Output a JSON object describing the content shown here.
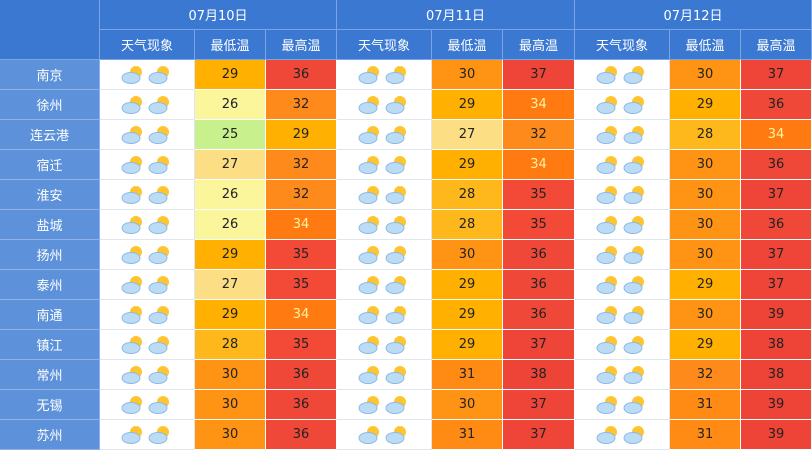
{
  "table": {
    "dates": [
      "07月10日",
      "07月11日",
      "07月12日"
    ],
    "subheaders": [
      "天气现象",
      "最低温",
      "最高温"
    ],
    "rows": [
      {
        "city": "南京",
        "days": [
          [
            29,
            36
          ],
          [
            30,
            37
          ],
          [
            30,
            37
          ]
        ]
      },
      {
        "city": "徐州",
        "days": [
          [
            26,
            32
          ],
          [
            29,
            34
          ],
          [
            29,
            36
          ]
        ]
      },
      {
        "city": "连云港",
        "days": [
          [
            25,
            29
          ],
          [
            27,
            32
          ],
          [
            28,
            34
          ]
        ]
      },
      {
        "city": "宿迁",
        "days": [
          [
            27,
            32
          ],
          [
            29,
            34
          ],
          [
            30,
            36
          ]
        ]
      },
      {
        "city": "淮安",
        "days": [
          [
            26,
            32
          ],
          [
            28,
            35
          ],
          [
            30,
            37
          ]
        ]
      },
      {
        "city": "盐城",
        "days": [
          [
            26,
            34
          ],
          [
            28,
            35
          ],
          [
            30,
            36
          ]
        ]
      },
      {
        "city": "扬州",
        "days": [
          [
            29,
            35
          ],
          [
            30,
            36
          ],
          [
            30,
            37
          ]
        ]
      },
      {
        "city": "泰州",
        "days": [
          [
            27,
            35
          ],
          [
            29,
            36
          ],
          [
            29,
            37
          ]
        ]
      },
      {
        "city": "南通",
        "days": [
          [
            29,
            34
          ],
          [
            29,
            36
          ],
          [
            30,
            39
          ]
        ]
      },
      {
        "city": "镇江",
        "days": [
          [
            28,
            35
          ],
          [
            29,
            37
          ],
          [
            29,
            38
          ]
        ]
      },
      {
        "city": "常州",
        "days": [
          [
            30,
            36
          ],
          [
            31,
            38
          ],
          [
            32,
            38
          ]
        ]
      },
      {
        "city": "无锡",
        "days": [
          [
            30,
            36
          ],
          [
            30,
            37
          ],
          [
            31,
            39
          ]
        ]
      },
      {
        "city": "苏州",
        "days": [
          [
            30,
            36
          ],
          [
            31,
            37
          ],
          [
            31,
            39
          ]
        ]
      }
    ]
  },
  "temp_colors": {
    "25": "#c8f08c",
    "26": "#fbf59c",
    "27": "#fcdf84",
    "28": "#feb81c",
    "29": "#ffb000",
    "30": "#ff9414",
    "31": "#ff8a14",
    "32": "#ff8a1c",
    "34": "#ff7a10",
    "35": "#f24a36",
    "36": "#f04838",
    "37": "#ef4538",
    "38": "#ee4337",
    "39": "#ee4337"
  },
  "temp_text_colors": {
    "34": "#fff3a0"
  }
}
